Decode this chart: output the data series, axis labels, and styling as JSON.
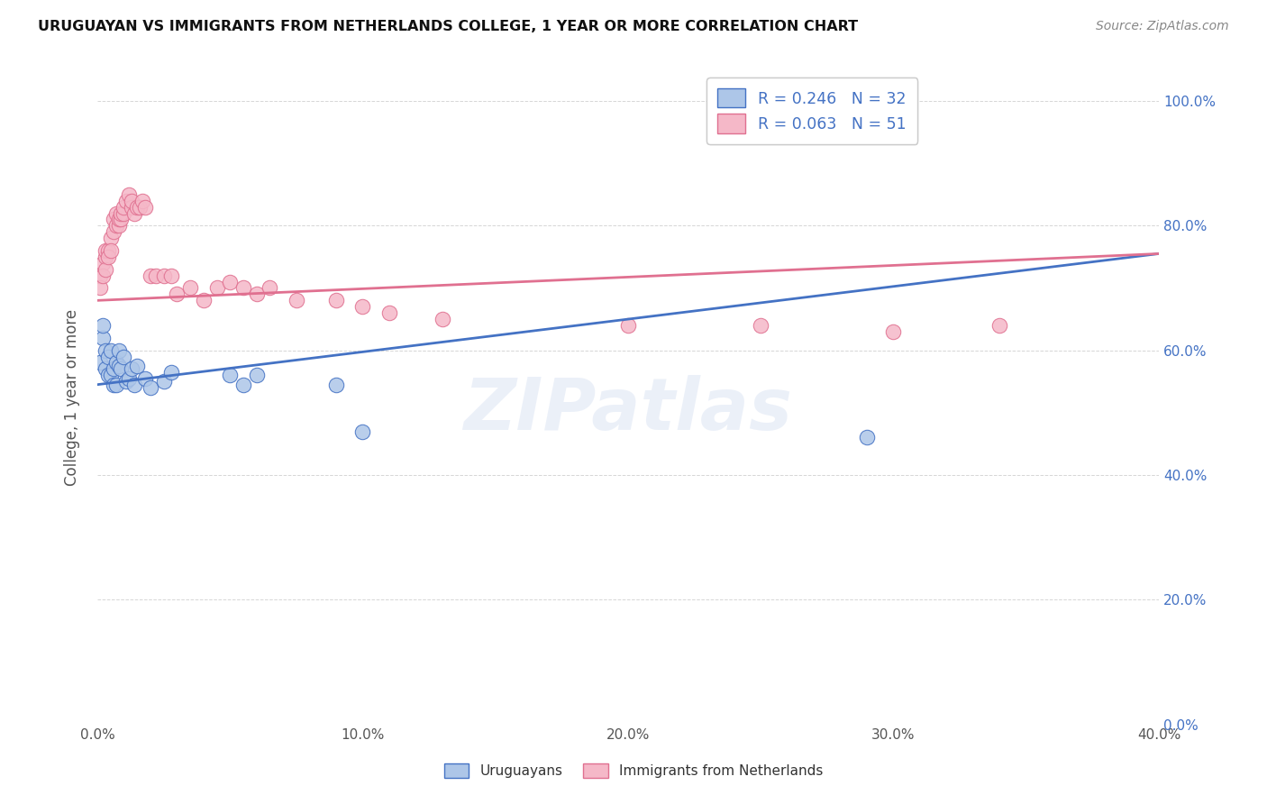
{
  "title": "URUGUAYAN VS IMMIGRANTS FROM NETHERLANDS COLLEGE, 1 YEAR OR MORE CORRELATION CHART",
  "source": "Source: ZipAtlas.com",
  "xlim": [
    0.0,
    0.4
  ],
  "ylim": [
    0.0,
    1.05
  ],
  "legend_uruguayan": "R = 0.246   N = 32",
  "legend_netherlands": "R = 0.063   N = 51",
  "uruguayan_color": "#adc6e8",
  "netherlands_color": "#f5b8c8",
  "uruguayan_line_color": "#4472c4",
  "netherlands_line_color": "#e07090",
  "watermark": "ZIPatlas",
  "uruguayan_x": [
    0.001,
    0.002,
    0.002,
    0.003,
    0.003,
    0.004,
    0.004,
    0.005,
    0.005,
    0.006,
    0.006,
    0.007,
    0.007,
    0.008,
    0.008,
    0.009,
    0.01,
    0.011,
    0.012,
    0.013,
    0.014,
    0.015,
    0.018,
    0.02,
    0.025,
    0.028,
    0.05,
    0.055,
    0.06,
    0.09,
    0.1,
    0.29
  ],
  "uruguayan_y": [
    0.58,
    0.62,
    0.64,
    0.6,
    0.57,
    0.59,
    0.56,
    0.6,
    0.56,
    0.57,
    0.545,
    0.58,
    0.545,
    0.575,
    0.6,
    0.57,
    0.59,
    0.55,
    0.555,
    0.57,
    0.545,
    0.575,
    0.555,
    0.54,
    0.55,
    0.565,
    0.56,
    0.545,
    0.56,
    0.545,
    0.47,
    0.46
  ],
  "netherlands_x": [
    0.001,
    0.001,
    0.002,
    0.002,
    0.003,
    0.003,
    0.003,
    0.004,
    0.004,
    0.005,
    0.005,
    0.006,
    0.006,
    0.007,
    0.007,
    0.008,
    0.008,
    0.009,
    0.009,
    0.01,
    0.01,
    0.011,
    0.012,
    0.013,
    0.013,
    0.014,
    0.015,
    0.016,
    0.017,
    0.018,
    0.02,
    0.022,
    0.025,
    0.028,
    0.03,
    0.035,
    0.04,
    0.045,
    0.05,
    0.055,
    0.06,
    0.065,
    0.075,
    0.09,
    0.1,
    0.11,
    0.13,
    0.2,
    0.25,
    0.3,
    0.34
  ],
  "netherlands_y": [
    0.72,
    0.7,
    0.74,
    0.72,
    0.75,
    0.76,
    0.73,
    0.76,
    0.75,
    0.78,
    0.76,
    0.79,
    0.81,
    0.8,
    0.82,
    0.8,
    0.81,
    0.81,
    0.82,
    0.82,
    0.83,
    0.84,
    0.85,
    0.83,
    0.84,
    0.82,
    0.83,
    0.83,
    0.84,
    0.83,
    0.72,
    0.72,
    0.72,
    0.72,
    0.69,
    0.7,
    0.68,
    0.7,
    0.71,
    0.7,
    0.69,
    0.7,
    0.68,
    0.68,
    0.67,
    0.66,
    0.65,
    0.64,
    0.64,
    0.63,
    0.64
  ],
  "ylabel": "College, 1 year or more",
  "bottom_legend_uruguayan": "Uruguayans",
  "bottom_legend_netherlands": "Immigrants from Netherlands",
  "uruguayan_line_x0": 0.0,
  "uruguayan_line_y0": 0.545,
  "uruguayan_line_x1": 0.4,
  "uruguayan_line_y1": 0.755,
  "netherlands_line_x0": 0.0,
  "netherlands_line_y0": 0.68,
  "netherlands_line_x1": 0.4,
  "netherlands_line_y1": 0.755
}
